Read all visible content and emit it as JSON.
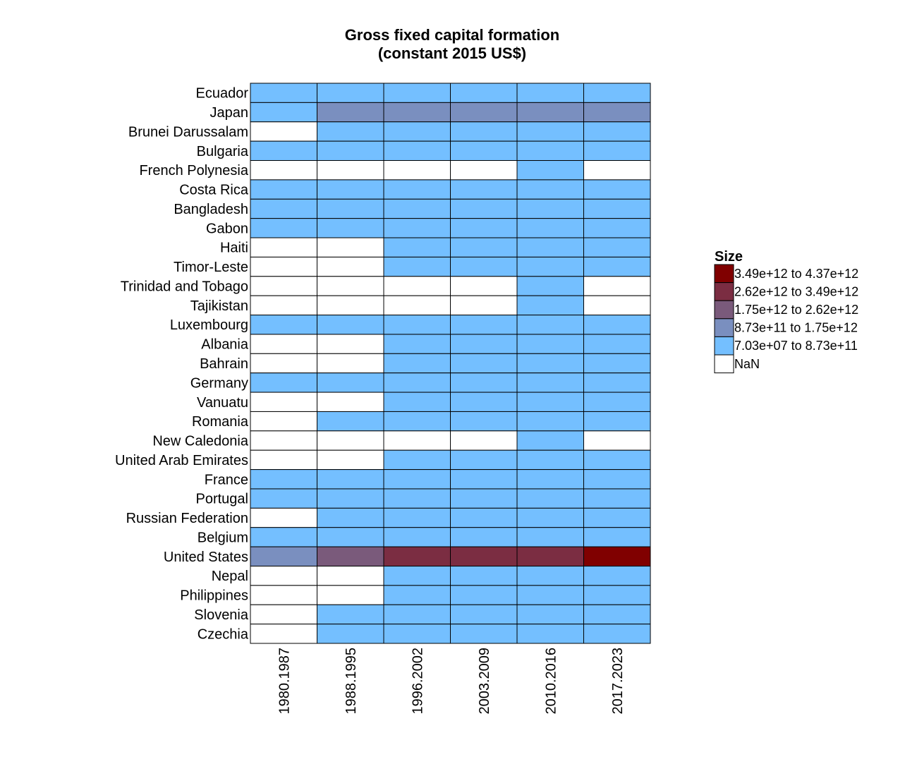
{
  "chart_data": {
    "type": "heatmap",
    "title": [
      "Gross fixed capital formation",
      "(constant 2015 US$)"
    ],
    "rows": [
      "Ecuador",
      "Japan",
      "Brunei Darussalam",
      "Bulgaria",
      "French Polynesia",
      "Costa Rica",
      "Bangladesh",
      "Gabon",
      "Haiti",
      "Timor-Leste",
      "Trinidad and Tobago",
      "Tajikistan",
      "Luxembourg",
      "Albania",
      "Bahrain",
      "Germany",
      "Vanuatu",
      "Romania",
      "New Caledonia",
      "United Arab Emirates",
      "France",
      "Portugal",
      "Russian Federation",
      "Belgium",
      "United States",
      "Nepal",
      "Philippines",
      "Slovenia",
      "Czechia"
    ],
    "columns": [
      "1980.1987",
      "1988.1995",
      "1996.2002",
      "2003.2009",
      "2010.2016",
      "2017.2023"
    ],
    "cells": [
      [
        0,
        0,
        0,
        0,
        0,
        0
      ],
      [
        0,
        1,
        1,
        1,
        1,
        1
      ],
      [
        null,
        0,
        0,
        0,
        0,
        0
      ],
      [
        0,
        0,
        0,
        0,
        0,
        0
      ],
      [
        null,
        null,
        null,
        null,
        0,
        null
      ],
      [
        0,
        0,
        0,
        0,
        0,
        0
      ],
      [
        0,
        0,
        0,
        0,
        0,
        0
      ],
      [
        0,
        0,
        0,
        0,
        0,
        0
      ],
      [
        null,
        null,
        0,
        0,
        0,
        0
      ],
      [
        null,
        null,
        0,
        0,
        0,
        0
      ],
      [
        null,
        null,
        null,
        null,
        0,
        null
      ],
      [
        null,
        null,
        null,
        null,
        0,
        null
      ],
      [
        0,
        0,
        0,
        0,
        0,
        0
      ],
      [
        null,
        null,
        0,
        0,
        0,
        0
      ],
      [
        null,
        null,
        0,
        0,
        0,
        0
      ],
      [
        0,
        0,
        0,
        0,
        0,
        0
      ],
      [
        null,
        null,
        0,
        0,
        0,
        0
      ],
      [
        null,
        0,
        0,
        0,
        0,
        0
      ],
      [
        null,
        null,
        null,
        null,
        0,
        null
      ],
      [
        null,
        null,
        0,
        0,
        0,
        0
      ],
      [
        0,
        0,
        0,
        0,
        0,
        0
      ],
      [
        0,
        0,
        0,
        0,
        0,
        0
      ],
      [
        null,
        0,
        0,
        0,
        0,
        0
      ],
      [
        0,
        0,
        0,
        0,
        0,
        0
      ],
      [
        1,
        2,
        3,
        3,
        3,
        4
      ],
      [
        null,
        null,
        0,
        0,
        0,
        0
      ],
      [
        null,
        null,
        0,
        0,
        0,
        0
      ],
      [
        null,
        0,
        0,
        0,
        0,
        0
      ],
      [
        null,
        0,
        0,
        0,
        0,
        0
      ]
    ],
    "legend": {
      "title": "Size",
      "placement": "right",
      "bins": [
        {
          "label": "3.49e+12 to 4.37e+12",
          "color": "#800000"
        },
        {
          "label": "2.62e+12 to 3.49e+12",
          "color": "#7b2d42"
        },
        {
          "label": "1.75e+12 to 2.62e+12",
          "color": "#7a5a7b"
        },
        {
          "label": "8.73e+11 to 1.75e+12",
          "color": "#7a8fbf"
        },
        {
          "label": "7.03e+07 to 8.73e+11",
          "color": "#74bfff"
        }
      ],
      "nan": {
        "label": "NaN",
        "color": "#ffffff"
      }
    }
  }
}
